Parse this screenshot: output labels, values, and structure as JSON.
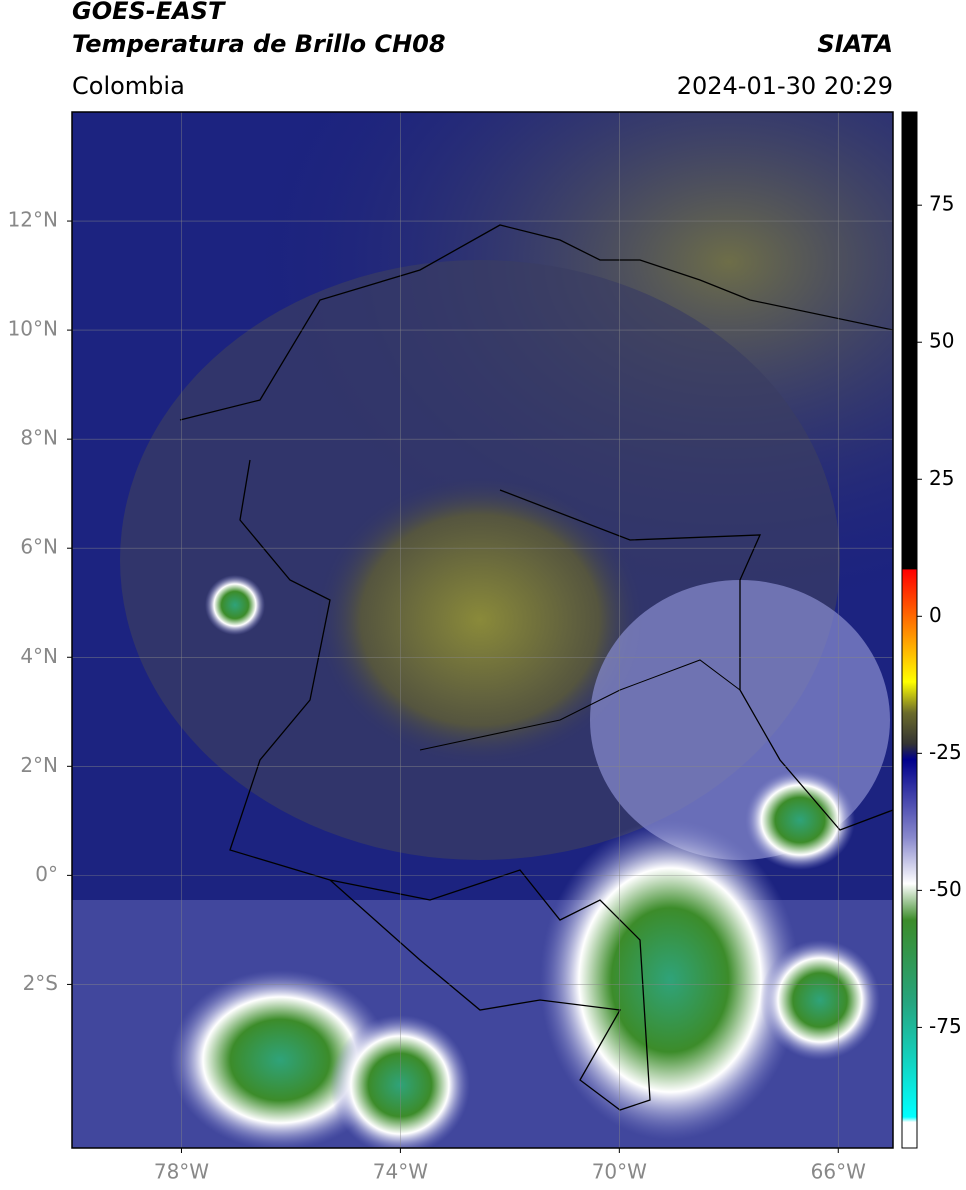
{
  "header": {
    "title": "GOES-EAST",
    "subtitle": "Temperatura de Brillo CH08",
    "region": "Colombia",
    "source": "SIATA",
    "datetime": "2024-01-30 20:29"
  },
  "map": {
    "xlim": [
      -80,
      -65
    ],
    "ylim": [
      -5,
      14
    ],
    "yticks": [
      {
        "value": 12,
        "label": "12°N"
      },
      {
        "value": 10,
        "label": "10°N"
      },
      {
        "value": 8,
        "label": "8°N"
      },
      {
        "value": 6,
        "label": "6°N"
      },
      {
        "value": 4,
        "label": "4°N"
      },
      {
        "value": 2,
        "label": "2°N"
      },
      {
        "value": 0,
        "label": "0°"
      },
      {
        "value": -2,
        "label": "2°S"
      }
    ],
    "xticks": [
      {
        "value": -78,
        "label": "78°W"
      },
      {
        "value": -74,
        "label": "74°W"
      },
      {
        "value": -70,
        "label": "70°W"
      },
      {
        "value": -66,
        "label": "66°W"
      }
    ]
  },
  "colorbar": {
    "lim": [
      -97,
      92
    ],
    "ticks": [
      75,
      50,
      25,
      0,
      -25,
      -50,
      -75
    ]
  }
}
